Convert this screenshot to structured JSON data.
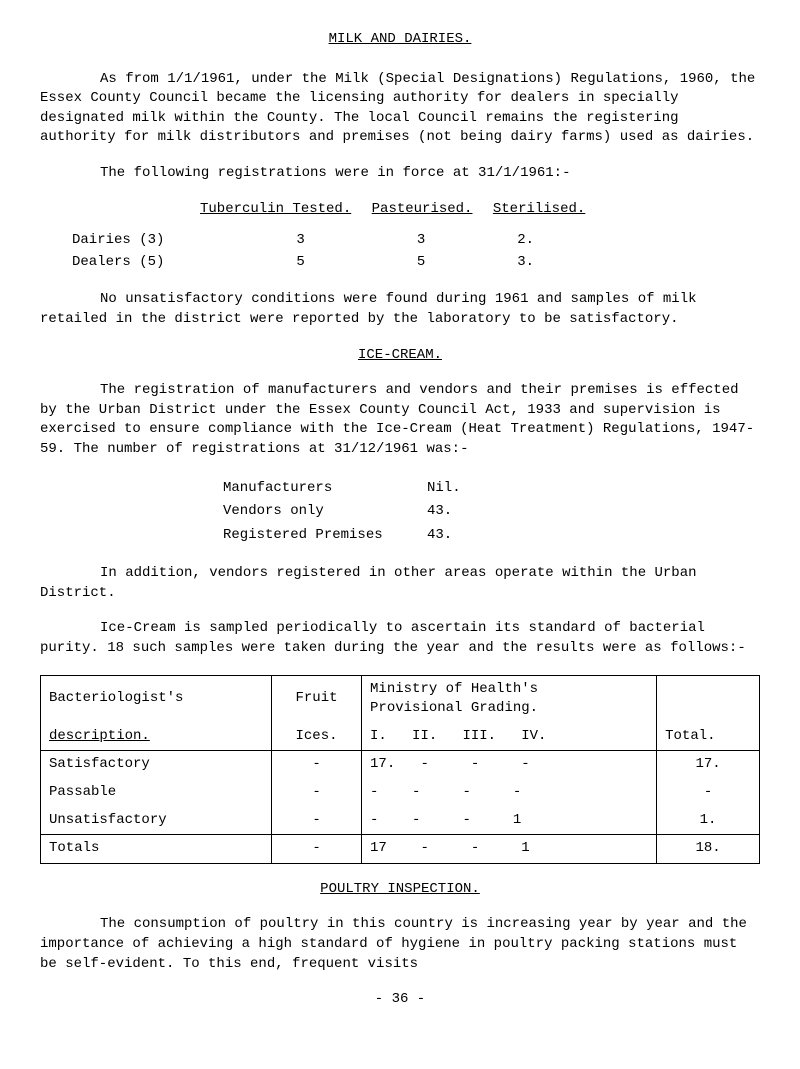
{
  "title": "MILK AND DAIRIES.",
  "para1": "As from 1/1/1961, under the Milk (Special Designations) Regulations, 1960, the Essex County Council became the licensing authority for dealers in specially designated milk within the County. The local Council remains the registering authority for milk distributors and premises (not being dairy farms) used as dairies.",
  "para2": "The following registrations were in force at 31/1/1961:-",
  "reg_headers": {
    "h1": "Tuberculin Tested.",
    "h2": "Pasteurised.",
    "h3": "Sterilised."
  },
  "reg_rows": [
    {
      "label": "Dairies (3)",
      "c1": "3",
      "c2": "3",
      "c3": "2."
    },
    {
      "label": "Dealers (5)",
      "c1": "5",
      "c2": "5",
      "c3": "3."
    }
  ],
  "para3": "No unsatisfactory conditions were found during 1961 and samples of milk retailed in the district were reported by the laboratory to be satisfactory.",
  "section2": "ICE-CREAM.",
  "para4": "The registration of manufacturers and vendors and their premises is effected by the Urban District under the Essex County Council Act, 1933 and supervision is exercised to ensure compliance with the Ice-Cream (Heat Treatment) Regulations, 1947-59. The number of registrations at 31/12/1961 was:-",
  "mfr_rows": [
    {
      "label": "Manufacturers",
      "val": "Nil."
    },
    {
      "label": "Vendors only",
      "val": "43."
    },
    {
      "label": "Registered Premises",
      "val": "43."
    }
  ],
  "para5": "In addition, vendors registered in other areas operate within the Urban District.",
  "para6": "Ice-Cream is sampled periodically to ascertain its standard of bacterial purity. 18 such samples were taken during the year and the results were as follows:-",
  "table": {
    "h_bact": "Bacteriologist's",
    "h_desc": "description.",
    "h_fruit": "Fruit",
    "h_ices": "Ices.",
    "h_ministry": "Ministry of Health's",
    "h_prov": "Provisional Grading.",
    "h_cols": "I.   II.   III.   IV.",
    "h_total": "Total.",
    "rows": [
      {
        "label": "Satisfactory",
        "fruit": "-",
        "grade": "17.   -     -     -",
        "total": "17."
      },
      {
        "label": "Passable",
        "fruit": "-",
        "grade": "-    -     -     -",
        "total": "-"
      },
      {
        "label": "Unsatisfactory",
        "fruit": "-",
        "grade": "-    -     -     1",
        "total": "1."
      }
    ],
    "totals": {
      "label": "Totals",
      "fruit": "-",
      "grade": "17    -     -     1",
      "total": "18."
    }
  },
  "section3": "POULTRY INSPECTION.",
  "para7": "The consumption of poultry in this country is increasing year by year and the importance of achieving a high standard of hygiene in poultry packing stations must be self-evident. To this end, frequent visits",
  "page_num": "- 36 -"
}
